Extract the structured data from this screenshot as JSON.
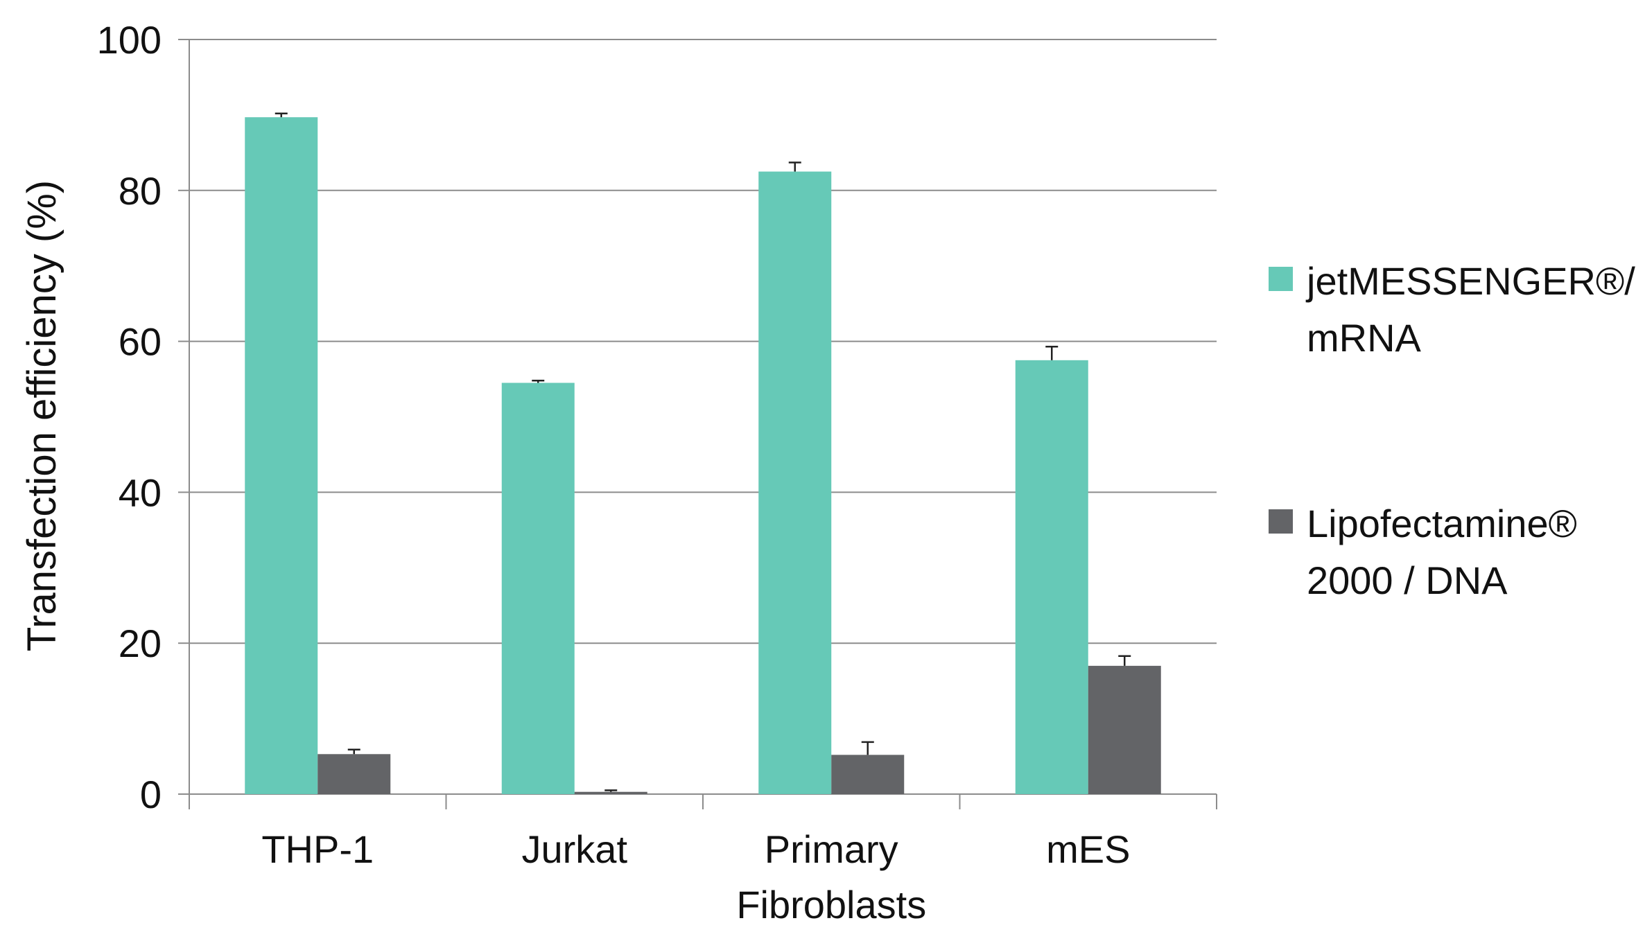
{
  "chart_data": {
    "type": "bar",
    "categories": [
      [
        "THP-1"
      ],
      [
        "Jurkat"
      ],
      [
        "Primary",
        "Fibroblasts"
      ],
      [
        "mES"
      ]
    ],
    "series": [
      {
        "name": [
          "jetMESSENGER®/",
          "mRNA"
        ],
        "color": "#66c9b7",
        "values": [
          89.7,
          54.5,
          82.5,
          57.5
        ],
        "errors": [
          0.5,
          0.3,
          1.2,
          1.8
        ]
      },
      {
        "name": [
          "Lipofectamine®",
          "2000 / DNA"
        ],
        "color": "#636467",
        "values": [
          5.3,
          0.3,
          5.2,
          17.0
        ],
        "errors": [
          0.6,
          0.2,
          1.7,
          1.3
        ]
      }
    ],
    "ylabel": "Transfection efficiency (%)",
    "xlabel": "",
    "title": "",
    "ylim": [
      0,
      100
    ],
    "yticks": [
      "0",
      "20",
      "40",
      "60",
      "80",
      "100"
    ],
    "grid": true,
    "legend_position": "right"
  }
}
